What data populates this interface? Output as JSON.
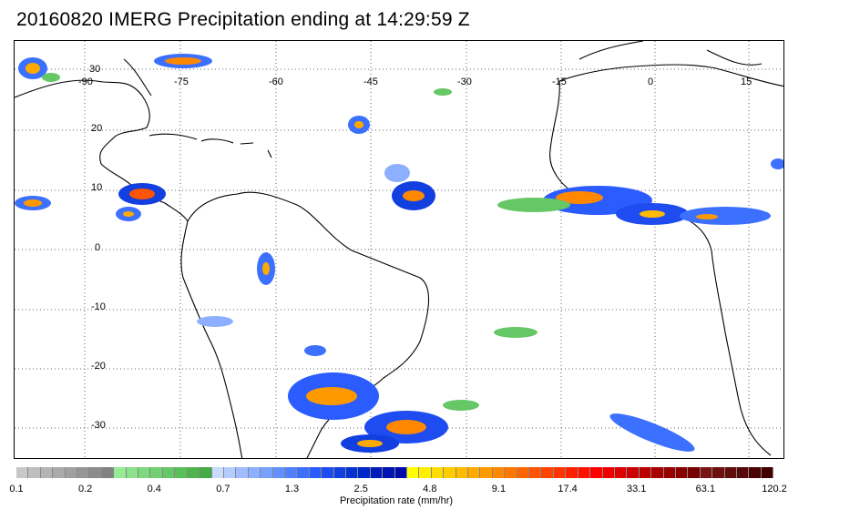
{
  "title": "20160820 IMERG Precipitation ending at 14:29:59 Z",
  "map": {
    "longitude_labels": [
      "-90",
      "-75",
      "-60",
      "-45",
      "-30",
      "-15",
      "0",
      "15"
    ],
    "latitude_labels": [
      "30",
      "20",
      "10",
      "0",
      "-10",
      "-20",
      "-30"
    ],
    "grid_style": "dotted",
    "coastline_color": "#000000"
  },
  "colorbar": {
    "caption": "Precipitation rate (mm/hr)",
    "tick_labels": [
      "0.1",
      "0.2",
      "0.4",
      "0.7",
      "1.3",
      "2.5",
      "4.8",
      "9.1",
      "17.4",
      "33.1",
      "63.1",
      "120.2"
    ],
    "colors": [
      "#c8c8c8",
      "#bebebe",
      "#b4b4b4",
      "#aaaaaa",
      "#a0a0a0",
      "#969696",
      "#8c8c8c",
      "#828282",
      "#96eb96",
      "#8ae28a",
      "#7ed97e",
      "#72d072",
      "#66c766",
      "#5abe5a",
      "#4eb54e",
      "#44ac44",
      "#c8dcff",
      "#b4ccff",
      "#a0bcff",
      "#8cb0ff",
      "#78a0ff",
      "#6490ff",
      "#5080ff",
      "#3c70ff",
      "#2a5cff",
      "#1e4cf0",
      "#1240e0",
      "#0632d2",
      "#0028c8",
      "#001ebe",
      "#0014b4",
      "#000aaa",
      "#ffff00",
      "#ffee00",
      "#ffdd00",
      "#ffcc00",
      "#ffbb00",
      "#ffaa00",
      "#ff9900",
      "#ff8800",
      "#ff7700",
      "#ff6600",
      "#ff5500",
      "#ff4400",
      "#ff3300",
      "#ff2200",
      "#ff1100",
      "#ff0000",
      "#ee0000",
      "#dd0000",
      "#cc0000",
      "#bb0000",
      "#aa0000",
      "#990000",
      "#880000",
      "#770000",
      "#7a1414",
      "#6e1010",
      "#620c0c",
      "#560808",
      "#4a0404",
      "#400000"
    ]
  }
}
